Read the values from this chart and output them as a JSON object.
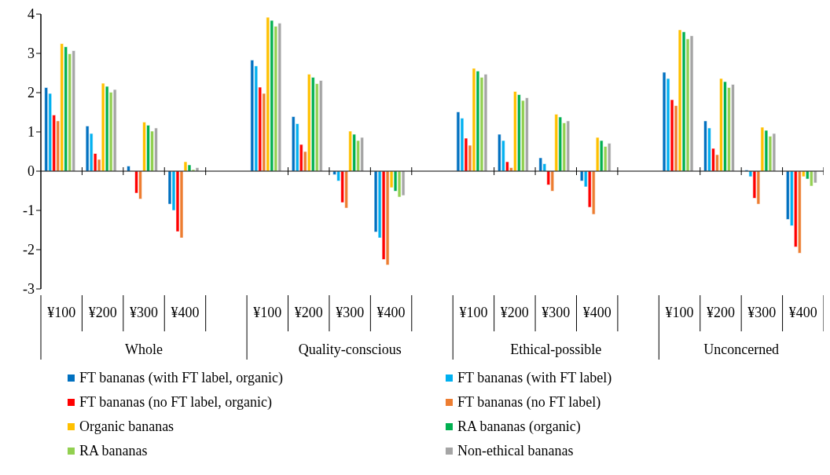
{
  "chart_data": {
    "type": "bar",
    "categories": [
      "¥100",
      "¥200",
      "¥300",
      "¥400",
      null,
      "¥100",
      "¥200",
      "¥300",
      "¥400",
      null,
      "¥100",
      "¥200",
      "¥300",
      "¥400",
      null,
      "¥100",
      "¥200",
      "¥300",
      "¥400"
    ],
    "annotations": [
      "Whole",
      "Quality-conscious",
      "Ethical-possible",
      "Unconcerned"
    ],
    "series": [
      {
        "name": "FT bananas (with FT label, organic)",
        "color": "#0070c0",
        "values": [
          2.13,
          1.15,
          0.13,
          -0.84,
          null,
          2.83,
          1.39,
          -0.09,
          -1.55,
          null,
          1.51,
          0.94,
          0.34,
          -0.25,
          null,
          2.52,
          1.28,
          0.03,
          -1.23
        ]
      },
      {
        "name": "FT bananas (with FT label)",
        "color": "#00b0f0",
        "values": [
          1.98,
          0.96,
          0,
          -1.0,
          null,
          2.68,
          1.21,
          -0.25,
          -1.7,
          null,
          1.35,
          0.78,
          0.19,
          -0.4,
          null,
          2.36,
          1.1,
          -0.14,
          -1.39
        ]
      },
      {
        "name": "FT bananas (no FT label, organic)",
        "color": "#ff0000",
        "values": [
          1.43,
          0.45,
          -0.56,
          -1.54,
          null,
          2.14,
          0.68,
          -0.8,
          -2.25,
          null,
          0.84,
          0.24,
          -0.35,
          -0.92,
          null,
          1.82,
          0.58,
          -0.69,
          -1.93
        ]
      },
      {
        "name": "FT bananas (no FT label)",
        "color": "#ed7d31",
        "values": [
          1.28,
          0.3,
          -0.71,
          -1.7,
          null,
          1.98,
          0.5,
          -0.94,
          -2.39,
          null,
          0.66,
          0.09,
          -0.51,
          -1.1,
          null,
          1.67,
          0.42,
          -0.84,
          -2.09
        ]
      },
      {
        "name": "Organic bananas",
        "color": "#ffc000",
        "values": [
          3.25,
          2.24,
          1.25,
          0.24,
          null,
          3.92,
          2.47,
          1.02,
          -0.42,
          null,
          2.62,
          2.03,
          1.45,
          0.86,
          null,
          3.6,
          2.36,
          1.12,
          -0.14
        ]
      },
      {
        "name": "RA bananas (organic)",
        "color": "#00b050",
        "values": [
          3.17,
          2.16,
          1.17,
          0.16,
          null,
          3.84,
          2.39,
          0.94,
          -0.51,
          null,
          2.55,
          1.95,
          1.38,
          0.78,
          null,
          3.55,
          2.28,
          1.04,
          -0.2
        ]
      },
      {
        "name": "RA bananas",
        "color": "#92d050",
        "values": [
          2.99,
          2.01,
          1.02,
          0.04,
          null,
          3.69,
          2.23,
          0.78,
          -0.66,
          null,
          2.39,
          1.8,
          1.23,
          0.63,
          null,
          3.37,
          2.13,
          0.89,
          -0.38
        ]
      },
      {
        "name": "Non-ethical bananas",
        "color": "#a5a5a5",
        "values": [
          3.07,
          2.08,
          1.1,
          0.09,
          null,
          3.77,
          2.31,
          0.86,
          -0.62,
          null,
          2.47,
          1.87,
          1.28,
          0.71,
          null,
          3.45,
          2.21,
          0.96,
          -0.3
        ]
      }
    ],
    "ylim": [
      -3,
      4
    ],
    "yticks": [
      -3,
      -2,
      -1,
      0,
      1,
      2,
      3,
      4
    ],
    "legend": "bottom"
  }
}
